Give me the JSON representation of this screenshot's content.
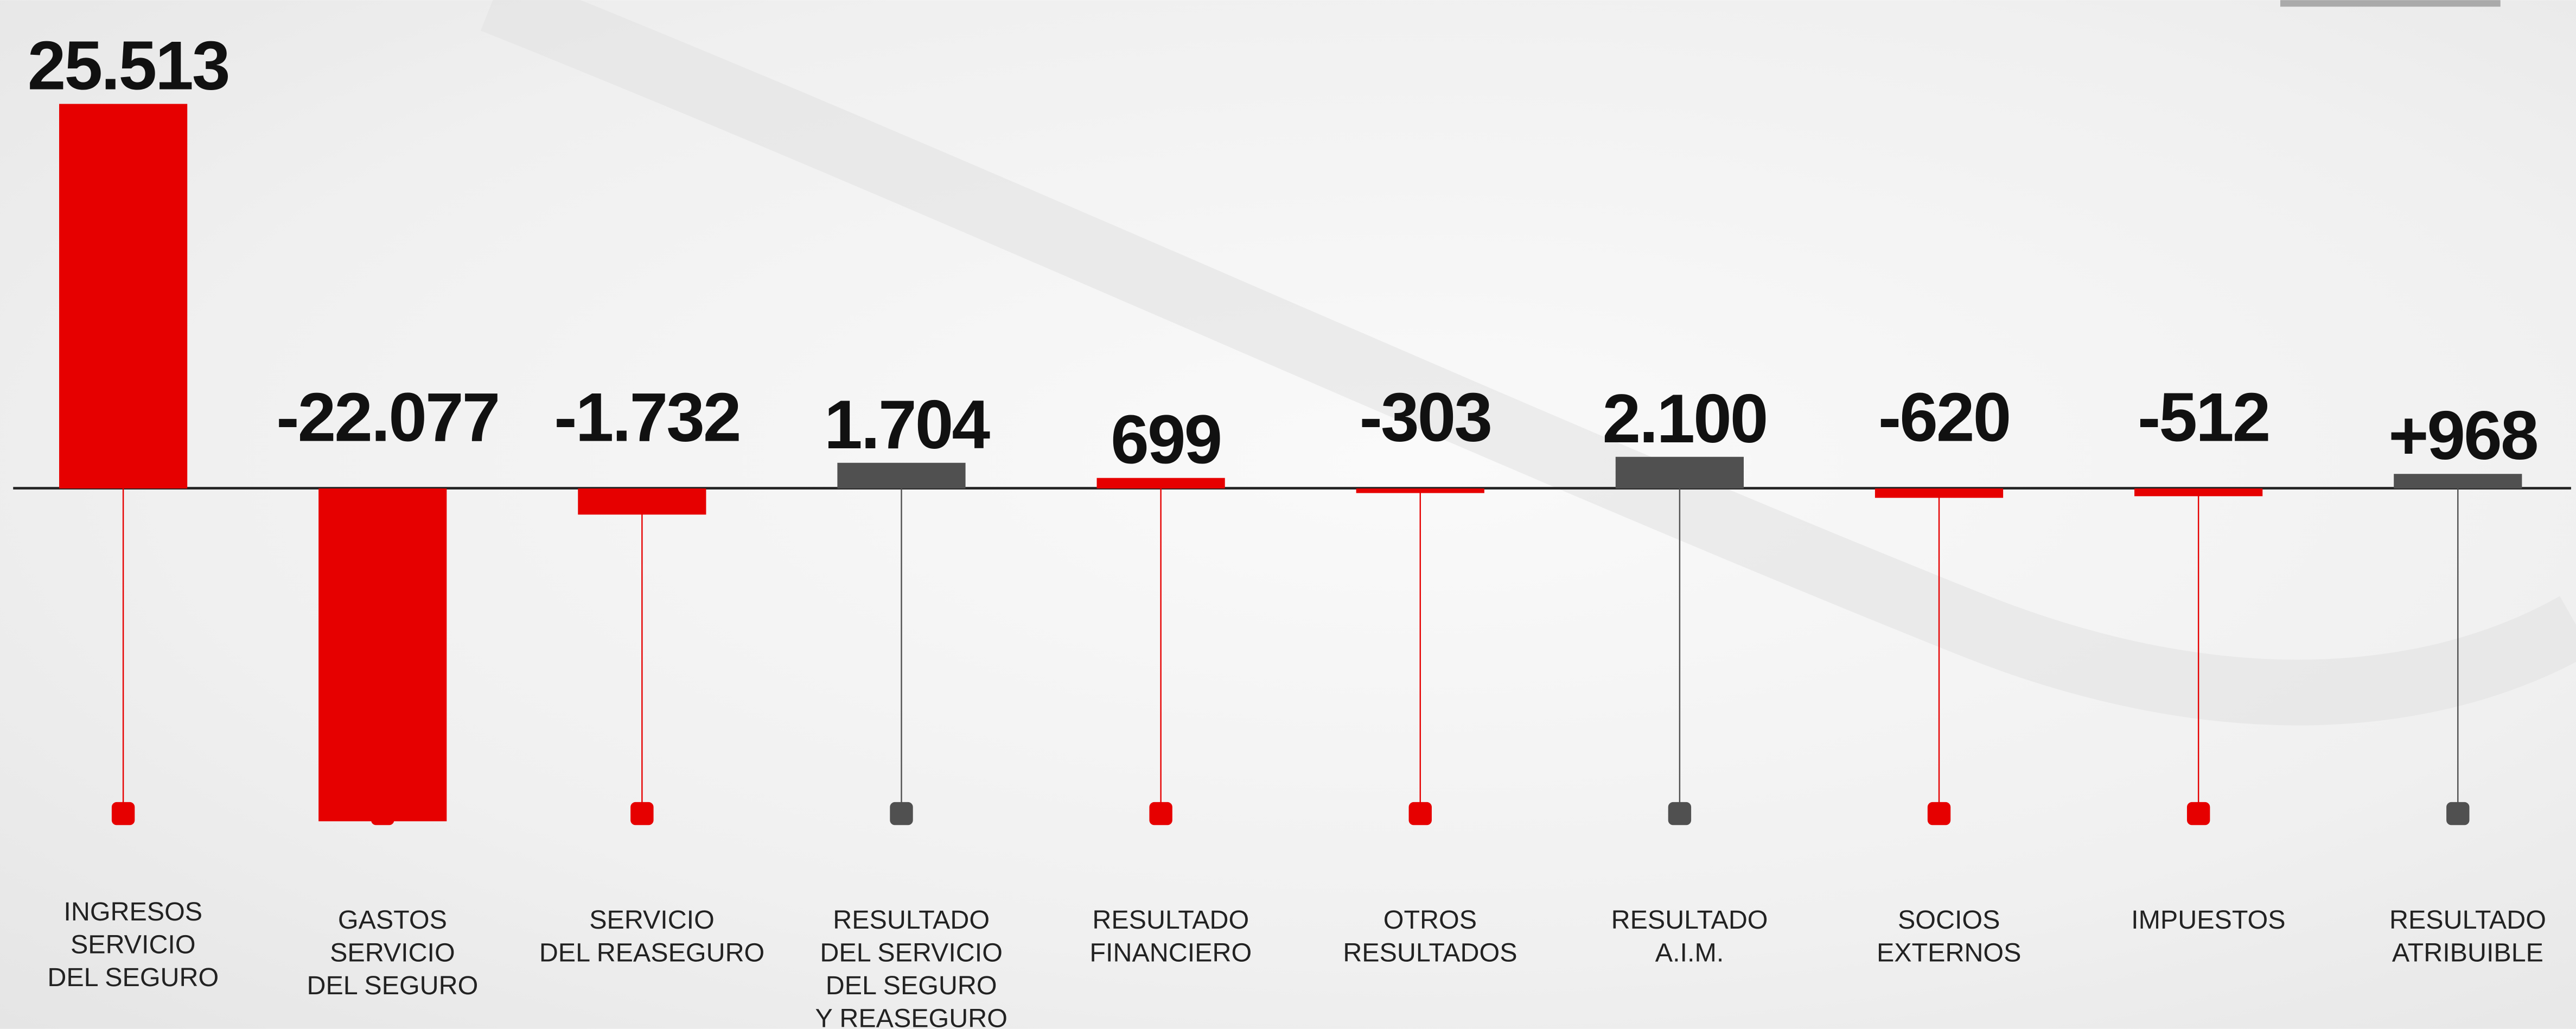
{
  "chart_data": {
    "type": "bar",
    "categories": [
      [
        "INGRESOS",
        "SERVICIO",
        "DEL SEGURO"
      ],
      [
        "GASTOS",
        "SERVICIO",
        "DEL SEGURO"
      ],
      [
        "SERVICIO",
        "DEL REASEGURO"
      ],
      [
        "RESULTADO",
        "DEL SERVICIO",
        "DEL SEGURO",
        "Y REASEGURO"
      ],
      [
        "RESULTADO",
        "FINANCIERO"
      ],
      [
        "OTROS",
        "RESULTADOS"
      ],
      [
        "RESULTADO",
        "A.I.M."
      ],
      [
        "SOCIOS",
        "EXTERNOS"
      ],
      [
        "IMPUESTOS"
      ],
      [
        "RESULTADO",
        "ATRIBUIBLE"
      ]
    ],
    "values": [
      25513,
      -22077,
      -1732,
      1704,
      699,
      -303,
      2100,
      -620,
      -512,
      968
    ],
    "value_labels": [
      "25.513",
      "-22.077",
      "-1.732",
      "1.704",
      "699",
      "-303",
      "2.100",
      "-620",
      "-512",
      "+968"
    ],
    "colors": [
      "#e60000",
      "#e60000",
      "#e60000",
      "#505050",
      "#e60000",
      "#e60000",
      "#505050",
      "#e60000",
      "#e60000",
      "#505050"
    ],
    "ylim": [
      -28000,
      30000
    ]
  }
}
